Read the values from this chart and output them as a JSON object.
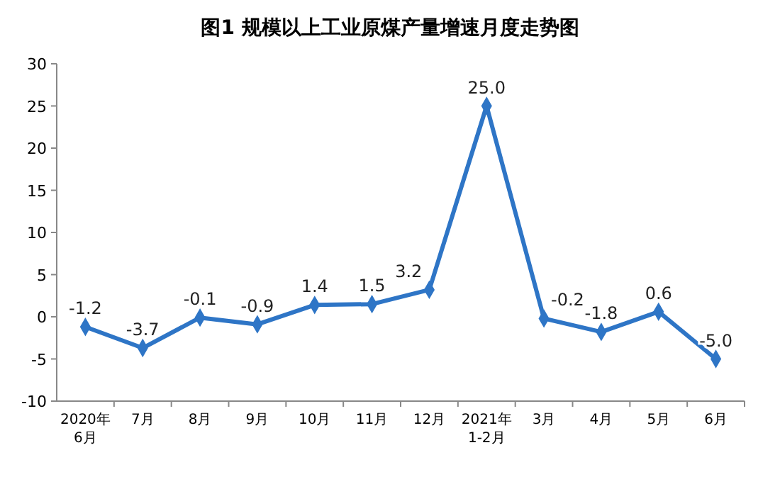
{
  "chart_data": {
    "type": "line",
    "title": "图1  规模以上工业原煤产量增速月度走势图",
    "categories": [
      "2020年\n6月",
      "7月",
      "8月",
      "9月",
      "10月",
      "11月",
      "12月",
      "2021年\n1-2月",
      "3月",
      "4月",
      "5月",
      "6月"
    ],
    "series": [
      {
        "color": "#2e75c6",
        "values": [
          -1.2,
          -3.7,
          -0.1,
          -0.9,
          1.4,
          1.5,
          3.2,
          25.0,
          -0.2,
          -1.8,
          0.6,
          -5.0
        ],
        "value_labels": [
          "-1.2",
          "-3.7",
          "-0.1",
          "-0.9",
          "1.4",
          "1.5",
          "3.2",
          "25.0",
          "-0.2",
          "-1.8",
          "0.6",
          "-5.0"
        ]
      }
    ],
    "ylim": [
      -10,
      30
    ],
    "yticks": [
      -10,
      -5,
      0,
      5,
      10,
      15,
      20,
      25,
      30
    ],
    "grid": false,
    "marker": "diamond",
    "line_style": "solid"
  }
}
